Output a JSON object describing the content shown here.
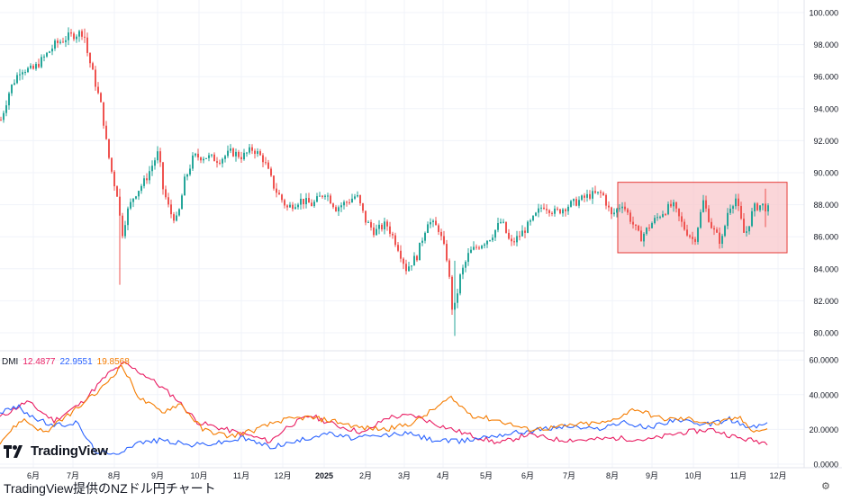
{
  "caption": "TradingView提供のNZドル円チャート",
  "logo_text": "TradingView",
  "dmi": {
    "label": "DMI",
    "values": [
      "12.4877",
      "22.9551",
      "19.8568"
    ],
    "colors": [
      "#e91e63",
      "#2962ff",
      "#f57c00"
    ]
  },
  "colors": {
    "up": "#26a69a",
    "down": "#ef5350",
    "box_fill": "#f8c8cc",
    "box_stroke": "#e53935",
    "grid": "#f0f3fa"
  },
  "chart_data": [
    {
      "type": "candlestick",
      "title": "",
      "x_tick_labels": [
        "6月",
        "7月",
        "8月",
        "9月",
        "10月",
        "11月",
        "12月",
        "2025",
        "2月",
        "3月",
        "4月",
        "5月",
        "6月",
        "7月",
        "8月",
        "9月",
        "10月",
        "11月",
        "12月"
      ],
      "y_tick_labels": [
        "100.000",
        "98.000",
        "96.000",
        "94.000",
        "92.000",
        "90.000",
        "88.000",
        "86.000",
        "84.000",
        "82.000",
        "80.000"
      ],
      "ylim": [
        79.0,
        101.0
      ],
      "approx_close_path": [
        {
          "t": 0,
          "v": 93.3
        },
        {
          "t": 10,
          "v": 95.2
        },
        {
          "t": 22,
          "v": 96.5
        },
        {
          "t": 35,
          "v": 96.4
        },
        {
          "t": 48,
          "v": 97.2
        },
        {
          "t": 60,
          "v": 98.0
        },
        {
          "t": 75,
          "v": 98.5
        },
        {
          "t": 92,
          "v": 98.8
        },
        {
          "t": 96,
          "v": 97.5
        },
        {
          "t": 103,
          "v": 96.0
        },
        {
          "t": 112,
          "v": 94.0
        },
        {
          "t": 118,
          "v": 91.5
        },
        {
          "t": 125,
          "v": 89.5
        },
        {
          "t": 130,
          "v": 88.5
        },
        {
          "t": 134,
          "v": 86.0
        },
        {
          "t": 140,
          "v": 87.5
        },
        {
          "t": 148,
          "v": 88.6
        },
        {
          "t": 160,
          "v": 89.5
        },
        {
          "t": 175,
          "v": 91.3
        },
        {
          "t": 180,
          "v": 89.0
        },
        {
          "t": 188,
          "v": 87.5
        },
        {
          "t": 196,
          "v": 87.0
        },
        {
          "t": 204,
          "v": 89.5
        },
        {
          "t": 214,
          "v": 91.0
        },
        {
          "t": 228,
          "v": 91.0
        },
        {
          "t": 242,
          "v": 90.8
        },
        {
          "t": 256,
          "v": 91.3
        },
        {
          "t": 268,
          "v": 91.0
        },
        {
          "t": 280,
          "v": 91.5
        },
        {
          "t": 292,
          "v": 90.8
        },
        {
          "t": 304,
          "v": 89.0
        },
        {
          "t": 318,
          "v": 87.8
        },
        {
          "t": 332,
          "v": 88.3
        },
        {
          "t": 346,
          "v": 88.0
        },
        {
          "t": 360,
          "v": 88.8
        },
        {
          "t": 372,
          "v": 87.8
        },
        {
          "t": 385,
          "v": 88.2
        },
        {
          "t": 395,
          "v": 88.6
        },
        {
          "t": 405,
          "v": 87.0
        },
        {
          "t": 415,
          "v": 86.3
        },
        {
          "t": 428,
          "v": 86.8
        },
        {
          "t": 440,
          "v": 85.5
        },
        {
          "t": 450,
          "v": 84.0
        },
        {
          "t": 462,
          "v": 84.8
        },
        {
          "t": 474,
          "v": 87.0
        },
        {
          "t": 486,
          "v": 86.5
        },
        {
          "t": 496,
          "v": 84.5
        },
        {
          "t": 502,
          "v": 81.0
        },
        {
          "t": 510,
          "v": 83.5
        },
        {
          "t": 520,
          "v": 85.0
        },
        {
          "t": 532,
          "v": 85.5
        },
        {
          "t": 544,
          "v": 86.0
        },
        {
          "t": 556,
          "v": 87.0
        },
        {
          "t": 566,
          "v": 85.5
        },
        {
          "t": 578,
          "v": 86.2
        },
        {
          "t": 590,
          "v": 87.0
        },
        {
          "t": 602,
          "v": 88.0
        },
        {
          "t": 616,
          "v": 87.5
        },
        {
          "t": 628,
          "v": 87.9
        },
        {
          "t": 640,
          "v": 88.2
        },
        {
          "t": 654,
          "v": 88.6
        },
        {
          "t": 668,
          "v": 88.7
        },
        {
          "t": 678,
          "v": 87.3
        },
        {
          "t": 690,
          "v": 88.1
        },
        {
          "t": 700,
          "v": 87.0
        },
        {
          "t": 710,
          "v": 85.9
        },
        {
          "t": 722,
          "v": 86.8
        },
        {
          "t": 734,
          "v": 87.5
        },
        {
          "t": 746,
          "v": 88.0
        },
        {
          "t": 758,
          "v": 86.6
        },
        {
          "t": 770,
          "v": 85.7
        },
        {
          "t": 780,
          "v": 88.2
        },
        {
          "t": 790,
          "v": 86.5
        },
        {
          "t": 800,
          "v": 85.6
        },
        {
          "t": 808,
          "v": 87.8
        },
        {
          "t": 816,
          "v": 88.4
        },
        {
          "t": 826,
          "v": 86.0
        },
        {
          "t": 836,
          "v": 87.8
        },
        {
          "t": 845,
          "v": 88.0
        },
        {
          "t": 852,
          "v": 87.7
        }
      ],
      "extremes": [
        {
          "t": 92,
          "low": 98.2,
          "high": 99.0
        },
        {
          "t": 133,
          "low": 83.0,
          "high": 89.0
        },
        {
          "t": 505,
          "low": 79.8,
          "high": 84.5
        },
        {
          "t": 848,
          "low": 86.6,
          "high": 89.0
        }
      ],
      "highlight_range": {
        "start_label": "8月",
        "end_label": "12月",
        "y_low": 85.0,
        "y_high": 89.4
      }
    },
    {
      "type": "line",
      "title": "DMI",
      "y_tick_labels": [
        "60.0000",
        "40.0000",
        "20.0000",
        "0.0000"
      ],
      "ylim": [
        0,
        62
      ],
      "series": [
        {
          "name": "",
          "color": "#e91e63",
          "values": [
            {
              "t": 0,
              "v": 27
            },
            {
              "t": 30,
              "v": 36
            },
            {
              "t": 60,
              "v": 25
            },
            {
              "t": 90,
              "v": 35
            },
            {
              "t": 120,
              "v": 52
            },
            {
              "t": 138,
              "v": 58
            },
            {
              "t": 165,
              "v": 50
            },
            {
              "t": 195,
              "v": 38
            },
            {
              "t": 220,
              "v": 24
            },
            {
              "t": 250,
              "v": 20
            },
            {
              "t": 280,
              "v": 16
            },
            {
              "t": 300,
              "v": 13
            },
            {
              "t": 320,
              "v": 22
            },
            {
              "t": 345,
              "v": 28
            },
            {
              "t": 375,
              "v": 22
            },
            {
              "t": 405,
              "v": 18
            },
            {
              "t": 430,
              "v": 27
            },
            {
              "t": 460,
              "v": 28
            },
            {
              "t": 490,
              "v": 22
            },
            {
              "t": 520,
              "v": 17
            },
            {
              "t": 555,
              "v": 12
            },
            {
              "t": 585,
              "v": 17
            },
            {
              "t": 620,
              "v": 14
            },
            {
              "t": 655,
              "v": 14
            },
            {
              "t": 685,
              "v": 15
            },
            {
              "t": 720,
              "v": 14
            },
            {
              "t": 755,
              "v": 18
            },
            {
              "t": 790,
              "v": 20
            },
            {
              "t": 820,
              "v": 15
            },
            {
              "t": 850,
              "v": 12.5
            }
          ]
        },
        {
          "name": "",
          "color": "#2962ff",
          "values": [
            {
              "t": 0,
              "v": 30
            },
            {
              "t": 20,
              "v": 33
            },
            {
              "t": 40,
              "v": 26
            },
            {
              "t": 60,
              "v": 22
            },
            {
              "t": 85,
              "v": 24
            },
            {
              "t": 105,
              "v": 8
            },
            {
              "t": 125,
              "v": 5
            },
            {
              "t": 150,
              "v": 12
            },
            {
              "t": 180,
              "v": 14
            },
            {
              "t": 210,
              "v": 11
            },
            {
              "t": 240,
              "v": 12
            },
            {
              "t": 270,
              "v": 15
            },
            {
              "t": 300,
              "v": 10
            },
            {
              "t": 330,
              "v": 13
            },
            {
              "t": 360,
              "v": 18
            },
            {
              "t": 390,
              "v": 15
            },
            {
              "t": 420,
              "v": 16
            },
            {
              "t": 450,
              "v": 18
            },
            {
              "t": 480,
              "v": 14
            },
            {
              "t": 510,
              "v": 13
            },
            {
              "t": 540,
              "v": 16
            },
            {
              "t": 570,
              "v": 18
            },
            {
              "t": 600,
              "v": 20
            },
            {
              "t": 630,
              "v": 22
            },
            {
              "t": 660,
              "v": 20
            },
            {
              "t": 690,
              "v": 24
            },
            {
              "t": 720,
              "v": 21
            },
            {
              "t": 750,
              "v": 26
            },
            {
              "t": 780,
              "v": 22
            },
            {
              "t": 810,
              "v": 26
            },
            {
              "t": 830,
              "v": 21
            },
            {
              "t": 850,
              "v": 23
            }
          ]
        },
        {
          "name": "",
          "color": "#f57c00",
          "values": [
            {
              "t": 0,
              "v": 13
            },
            {
              "t": 25,
              "v": 26
            },
            {
              "t": 50,
              "v": 18
            },
            {
              "t": 80,
              "v": 30
            },
            {
              "t": 110,
              "v": 42
            },
            {
              "t": 135,
              "v": 57
            },
            {
              "t": 155,
              "v": 38
            },
            {
              "t": 180,
              "v": 30
            },
            {
              "t": 200,
              "v": 35
            },
            {
              "t": 225,
              "v": 20
            },
            {
              "t": 255,
              "v": 16
            },
            {
              "t": 285,
              "v": 20
            },
            {
              "t": 310,
              "v": 25
            },
            {
              "t": 340,
              "v": 27
            },
            {
              "t": 370,
              "v": 25
            },
            {
              "t": 400,
              "v": 21
            },
            {
              "t": 430,
              "v": 20
            },
            {
              "t": 460,
              "v": 24
            },
            {
              "t": 500,
              "v": 38
            },
            {
              "t": 525,
              "v": 28
            },
            {
              "t": 555,
              "v": 25
            },
            {
              "t": 585,
              "v": 20
            },
            {
              "t": 615,
              "v": 21
            },
            {
              "t": 645,
              "v": 23
            },
            {
              "t": 675,
              "v": 24
            },
            {
              "t": 705,
              "v": 32
            },
            {
              "t": 735,
              "v": 26
            },
            {
              "t": 765,
              "v": 26
            },
            {
              "t": 795,
              "v": 23
            },
            {
              "t": 820,
              "v": 27
            },
            {
              "t": 838,
              "v": 19
            },
            {
              "t": 850,
              "v": 20
            }
          ]
        }
      ]
    }
  ]
}
